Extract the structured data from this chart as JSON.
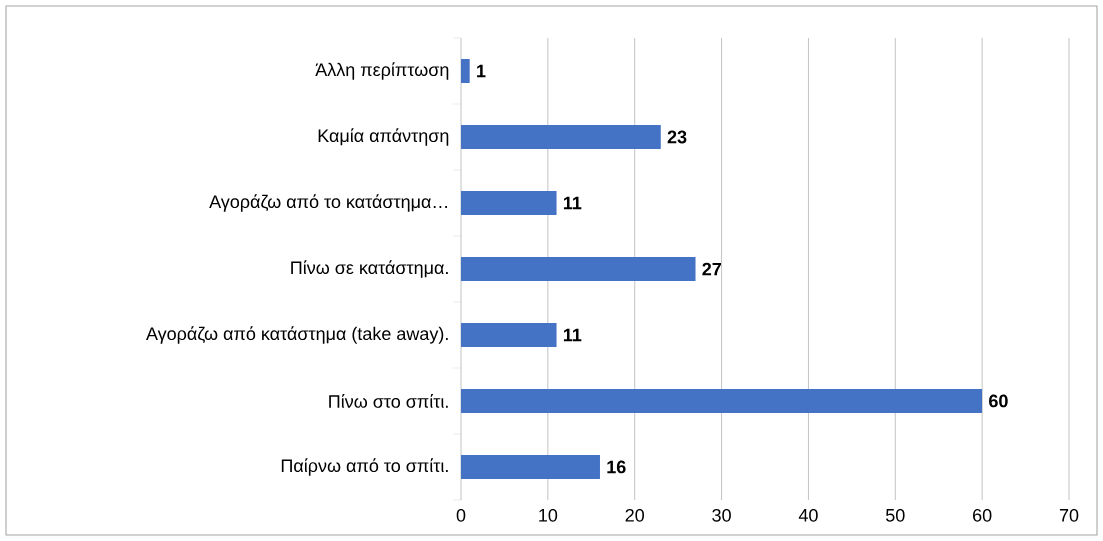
{
  "chart_data": {
    "type": "bar",
    "orientation": "horizontal",
    "categories": [
      "Άλλη περίπτωση",
      "Καμία απάντηση",
      "Αγοράζω από το κατάστημα…",
      "Πίνω σε κατάστημα.",
      "Αγοράζω από κατάστημα (take away).",
      "Πίνω στο σπίτι.",
      "Παίρνω από το σπίτι."
    ],
    "values": [
      1,
      23,
      11,
      27,
      11,
      60,
      16
    ],
    "color": "#4472c4",
    "xlim": [
      0,
      70
    ],
    "xticks": [
      0,
      10,
      20,
      30,
      40,
      50,
      60,
      70
    ],
    "grid": "x",
    "data_labels": true
  }
}
